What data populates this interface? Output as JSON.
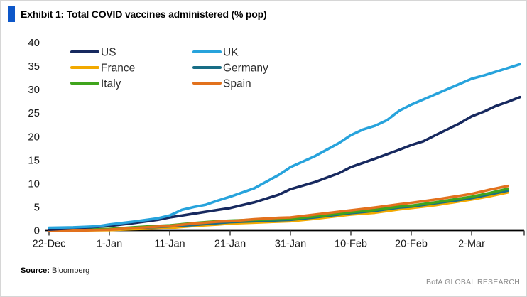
{
  "title": "Exhibit 1: Total COVID vaccines administered (% pop)",
  "source": {
    "label": "Source:",
    "value": "Bloomberg"
  },
  "brand": "BofA GLOBAL RESEARCH",
  "colors": {
    "accent_bar": "#0d57c9",
    "axis_line": "#000000",
    "tick_mark": "#404040",
    "tick_text": "#1a1a1a",
    "legend_text": "#2e2e2e",
    "brand_text": "#8c8c8c"
  },
  "chart_data": {
    "type": "line",
    "title": "Total COVID vaccines administered (% pop)",
    "xlabel": "",
    "ylabel": "",
    "grid": false,
    "legend_position": "top-left, two columns",
    "ylim": [
      0,
      40
    ],
    "y_ticks": [
      0,
      5,
      10,
      15,
      20,
      25,
      30,
      35,
      40
    ],
    "x_tick_labels": [
      "22-Dec",
      "1-Jan",
      "11-Jan",
      "21-Jan",
      "31-Jan",
      "10-Feb",
      "20-Feb",
      "2-Mar"
    ],
    "x_tick_days": [
      0,
      10,
      20,
      30,
      40,
      50,
      60,
      70
    ],
    "x_unit": "days since 22-Dec",
    "legend_order": [
      "US",
      "UK",
      "France",
      "Germany",
      "Italy",
      "Spain"
    ],
    "series": [
      {
        "name": "France",
        "color": "#f2a900",
        "points": [
          [
            0,
            0
          ],
          [
            6,
            0.05
          ],
          [
            10,
            0.1
          ],
          [
            14,
            0.3
          ],
          [
            18,
            0.45
          ],
          [
            20,
            0.55
          ],
          [
            24,
            1.0
          ],
          [
            28,
            1.3
          ],
          [
            30,
            1.5
          ],
          [
            34,
            1.7
          ],
          [
            38,
            1.9
          ],
          [
            40,
            2.0
          ],
          [
            44,
            2.5
          ],
          [
            48,
            3.1
          ],
          [
            50,
            3.4
          ],
          [
            54,
            3.8
          ],
          [
            58,
            4.5
          ],
          [
            60,
            4.8
          ],
          [
            64,
            5.4
          ],
          [
            68,
            6.2
          ],
          [
            70,
            6.6
          ],
          [
            73,
            7.3
          ],
          [
            76,
            8.1
          ]
        ]
      },
      {
        "name": "Germany",
        "color": "#186e86",
        "points": [
          [
            0,
            0
          ],
          [
            6,
            0.1
          ],
          [
            10,
            0.25
          ],
          [
            14,
            0.5
          ],
          [
            18,
            0.75
          ],
          [
            20,
            0.9
          ],
          [
            24,
            1.2
          ],
          [
            28,
            1.6
          ],
          [
            30,
            1.8
          ],
          [
            34,
            2.0
          ],
          [
            38,
            2.2
          ],
          [
            40,
            2.3
          ],
          [
            44,
            2.8
          ],
          [
            48,
            3.4
          ],
          [
            50,
            3.7
          ],
          [
            54,
            4.2
          ],
          [
            58,
            4.9
          ],
          [
            60,
            5.1
          ],
          [
            64,
            5.8
          ],
          [
            68,
            6.5
          ],
          [
            70,
            6.9
          ],
          [
            73,
            7.7
          ],
          [
            76,
            8.5
          ]
        ]
      },
      {
        "name": "Italy",
        "color": "#3fa41c",
        "points": [
          [
            0,
            0
          ],
          [
            6,
            0.15
          ],
          [
            10,
            0.35
          ],
          [
            14,
            0.7
          ],
          [
            18,
            1.0
          ],
          [
            20,
            1.1
          ],
          [
            24,
            1.6
          ],
          [
            28,
            2.0
          ],
          [
            30,
            2.1
          ],
          [
            34,
            2.3
          ],
          [
            38,
            2.4
          ],
          [
            40,
            2.5
          ],
          [
            44,
            3.0
          ],
          [
            48,
            3.6
          ],
          [
            50,
            3.9
          ],
          [
            54,
            4.4
          ],
          [
            58,
            5.1
          ],
          [
            60,
            5.3
          ],
          [
            64,
            6.0
          ],
          [
            68,
            6.8
          ],
          [
            70,
            7.2
          ],
          [
            73,
            8.0
          ],
          [
            76,
            8.9
          ]
        ]
      },
      {
        "name": "Spain",
        "color": "#e2711d",
        "points": [
          [
            0,
            0
          ],
          [
            6,
            0.05
          ],
          [
            10,
            0.2
          ],
          [
            14,
            0.55
          ],
          [
            18,
            0.85
          ],
          [
            20,
            1.0
          ],
          [
            24,
            1.5
          ],
          [
            28,
            1.9
          ],
          [
            30,
            2.0
          ],
          [
            34,
            2.4
          ],
          [
            38,
            2.7
          ],
          [
            40,
            2.8
          ],
          [
            44,
            3.4
          ],
          [
            48,
            4.0
          ],
          [
            50,
            4.3
          ],
          [
            54,
            4.9
          ],
          [
            58,
            5.6
          ],
          [
            60,
            5.9
          ],
          [
            64,
            6.6
          ],
          [
            68,
            7.4
          ],
          [
            70,
            7.8
          ],
          [
            73,
            8.7
          ],
          [
            76,
            9.5
          ]
        ]
      },
      {
        "name": "US",
        "color": "#17295f",
        "points": [
          [
            0,
            0.2
          ],
          [
            4,
            0.5
          ],
          [
            8,
            0.8
          ],
          [
            10,
            1.0
          ],
          [
            14,
            1.6
          ],
          [
            18,
            2.3
          ],
          [
            20,
            2.8
          ],
          [
            24,
            3.6
          ],
          [
            28,
            4.4
          ],
          [
            30,
            4.8
          ],
          [
            34,
            6.0
          ],
          [
            38,
            7.6
          ],
          [
            40,
            8.8
          ],
          [
            44,
            10.3
          ],
          [
            48,
            12.2
          ],
          [
            50,
            13.5
          ],
          [
            54,
            15.3
          ],
          [
            58,
            17.2
          ],
          [
            60,
            18.2
          ],
          [
            62,
            19.0
          ],
          [
            64,
            20.3
          ],
          [
            68,
            22.8
          ],
          [
            70,
            24.3
          ],
          [
            72,
            25.3
          ],
          [
            74,
            26.5
          ],
          [
            76,
            27.4
          ],
          [
            78,
            28.4
          ]
        ]
      },
      {
        "name": "UK",
        "color": "#27a3dc",
        "points": [
          [
            0,
            0.6
          ],
          [
            4,
            0.7
          ],
          [
            8,
            0.9
          ],
          [
            10,
            1.3
          ],
          [
            14,
            1.9
          ],
          [
            18,
            2.6
          ],
          [
            20,
            3.2
          ],
          [
            22,
            4.4
          ],
          [
            24,
            5.0
          ],
          [
            26,
            5.5
          ],
          [
            28,
            6.4
          ],
          [
            30,
            7.2
          ],
          [
            34,
            9.0
          ],
          [
            38,
            11.8
          ],
          [
            40,
            13.5
          ],
          [
            44,
            15.8
          ],
          [
            48,
            18.6
          ],
          [
            50,
            20.3
          ],
          [
            52,
            21.5
          ],
          [
            54,
            22.3
          ],
          [
            56,
            23.5
          ],
          [
            58,
            25.5
          ],
          [
            60,
            26.8
          ],
          [
            64,
            29.0
          ],
          [
            68,
            31.2
          ],
          [
            70,
            32.3
          ],
          [
            72,
            33.0
          ],
          [
            74,
            33.8
          ],
          [
            76,
            34.6
          ],
          [
            78,
            35.4
          ]
        ]
      }
    ]
  }
}
